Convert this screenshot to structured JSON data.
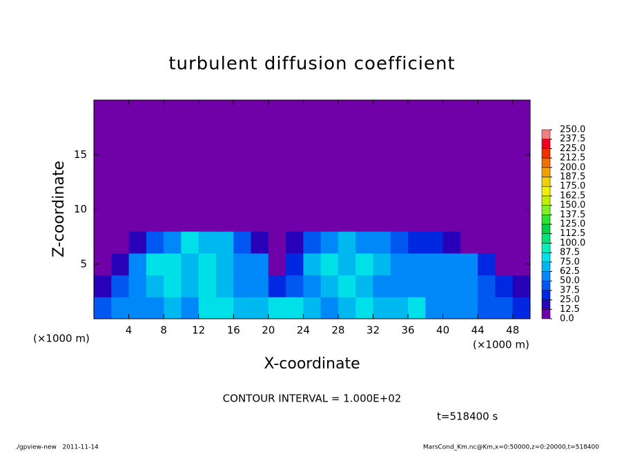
{
  "chart_data": {
    "type": "contour",
    "title": "turbulent diffusion coefficient",
    "xlabel": "X-coordinate",
    "ylabel": "Z-coordinate",
    "xunit": "(×1000 m)",
    "yunit": "(×1000 m)",
    "contour_interval": "CONTOUR INTERVAL = 1.000E+02",
    "time_label": "t=518400 s",
    "footer_left": "./gpview-new   2011-11-14",
    "footer_right": "MarsCond_Km.nc@Km,x=0:50000,z=0:20000,t=518400",
    "xlim": [
      0,
      50
    ],
    "ylim": [
      0,
      20
    ],
    "xticks": [
      4,
      8,
      12,
      16,
      20,
      24,
      28,
      32,
      36,
      40,
      44,
      48
    ],
    "yticks": [
      5,
      10,
      15
    ],
    "x": [
      1,
      3,
      5,
      7,
      9,
      11,
      13,
      15,
      17,
      19,
      21,
      23,
      25,
      27,
      29,
      31,
      33,
      35,
      37,
      39,
      41,
      43,
      45,
      47,
      49
    ],
    "z": [
      1,
      3,
      5,
      7,
      9,
      11,
      13,
      15,
      17,
      19
    ],
    "values": [
      [
        40,
        50,
        55,
        60,
        70,
        60,
        75,
        80,
        70,
        65,
        75,
        80,
        65,
        60,
        70,
        75,
        70,
        65,
        75,
        60,
        55,
        50,
        45,
        40,
        30
      ],
      [
        20,
        45,
        60,
        70,
        75,
        70,
        80,
        70,
        60,
        50,
        35,
        40,
        55,
        70,
        75,
        65,
        60,
        60,
        55,
        50,
        50,
        55,
        40,
        30,
        20
      ],
      [
        10,
        20,
        50,
        75,
        80,
        70,
        75,
        70,
        60,
        55,
        10,
        30,
        70,
        80,
        70,
        75,
        65,
        60,
        55,
        50,
        50,
        55,
        30,
        10,
        5
      ],
      [
        0,
        5,
        15,
        45,
        60,
        75,
        70,
        65,
        40,
        20,
        0,
        20,
        40,
        60,
        70,
        60,
        55,
        40,
        30,
        25,
        20,
        10,
        5,
        0,
        0
      ],
      [
        0,
        0,
        0,
        0,
        0,
        0,
        0,
        0,
        0,
        0,
        0,
        0,
        0,
        5,
        10,
        5,
        0,
        0,
        0,
        0,
        0,
        0,
        0,
        0,
        0
      ],
      [
        0,
        0,
        0,
        0,
        0,
        0,
        0,
        0,
        0,
        0,
        0,
        0,
        0,
        0,
        0,
        0,
        0,
        0,
        0,
        0,
        0,
        0,
        0,
        0,
        0
      ],
      [
        0,
        0,
        0,
        0,
        0,
        0,
        0,
        0,
        0,
        0,
        0,
        0,
        0,
        0,
        0,
        0,
        0,
        0,
        0,
        0,
        0,
        0,
        0,
        0,
        0
      ],
      [
        0,
        0,
        0,
        0,
        0,
        0,
        0,
        0,
        0,
        0,
        0,
        0,
        0,
        0,
        0,
        0,
        0,
        0,
        0,
        0,
        0,
        0,
        0,
        0,
        0
      ],
      [
        0,
        0,
        0,
        0,
        0,
        0,
        0,
        0,
        0,
        0,
        0,
        0,
        0,
        0,
        0,
        0,
        0,
        0,
        0,
        0,
        0,
        0,
        0,
        0,
        0
      ],
      [
        0,
        0,
        0,
        0,
        0,
        0,
        0,
        0,
        0,
        0,
        0,
        0,
        0,
        0,
        0,
        0,
        0,
        0,
        0,
        0,
        0,
        0,
        0,
        0,
        0
      ]
    ],
    "colorbar": {
      "ticks": [
        {
          "value": 0,
          "label": "0.0"
        },
        {
          "value": 12.5,
          "label": "12.5"
        },
        {
          "value": 25,
          "label": "25.0"
        },
        {
          "value": 37.5,
          "label": "37.5"
        },
        {
          "value": 50,
          "label": "50.0"
        },
        {
          "value": 62.5,
          "label": "62.5"
        },
        {
          "value": 75,
          "label": "75.0"
        },
        {
          "value": 87.5,
          "label": "87.5"
        },
        {
          "value": 100,
          "label": "100.0"
        },
        {
          "value": 112.5,
          "label": "112.5"
        },
        {
          "value": 125,
          "label": "125.0"
        },
        {
          "value": 137.5,
          "label": "137.5"
        },
        {
          "value": 150,
          "label": "150.0"
        },
        {
          "value": 162.5,
          "label": "162.5"
        },
        {
          "value": 175,
          "label": "175.0"
        },
        {
          "value": 187.5,
          "label": "187.5"
        },
        {
          "value": 200,
          "label": "200.0"
        },
        {
          "value": 212.5,
          "label": "212.5"
        },
        {
          "value": 225,
          "label": "225.0"
        },
        {
          "value": 237.5,
          "label": "237.5"
        },
        {
          "value": 250,
          "label": "250.0"
        }
      ],
      "colors": [
        "#7000a8",
        "#2800b8",
        "#0028e0",
        "#0058f0",
        "#0088f8",
        "#00b8f0",
        "#00e0e8",
        "#00f0b8",
        "#00e078",
        "#00d048",
        "#30e030",
        "#80f020",
        "#c0f000",
        "#f0f000",
        "#f0d000",
        "#f0a000",
        "#f07000",
        "#f03000",
        "#f00020",
        "#f08080"
      ]
    }
  }
}
